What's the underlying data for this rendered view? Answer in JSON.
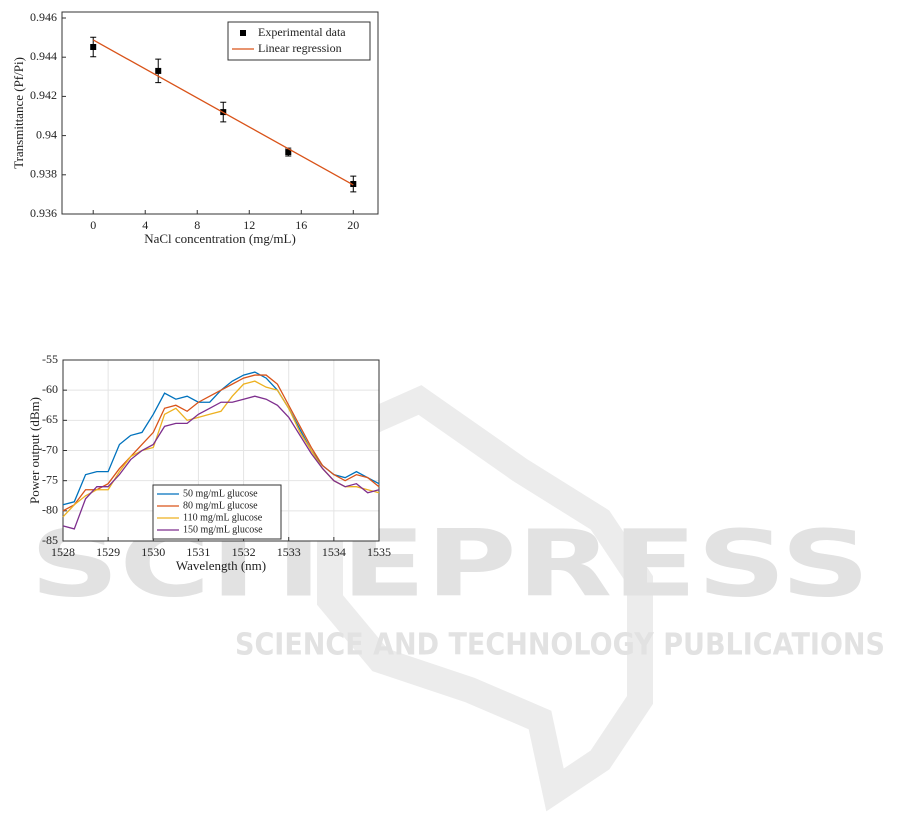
{
  "watermark": {
    "title": "SCITEPRESS",
    "subtitle": "SCIENCE AND TECHNOLOGY PUBLICATIONS"
  },
  "chart_data": [
    {
      "type": "scatter",
      "xlabel": "NaCl concentration (mg/mL)",
      "ylabel": "Transmittance (Pf/Pi)",
      "xlim": [
        -2.4,
        21.9
      ],
      "ylim": [
        0.936,
        0.946
      ],
      "xticks": [
        0,
        4,
        8,
        12,
        16,
        20
      ],
      "yticks": [
        0.936,
        0.938,
        0.94,
        0.942,
        0.944,
        0.946
      ],
      "grid": false,
      "legend": "upper right",
      "series": [
        {
          "name": "Experimental data",
          "type": "scatter",
          "color": "#000000",
          "x": [
            0,
            5,
            10,
            15,
            20
          ],
          "values": [
            0.94452,
            0.9433,
            0.9412,
            0.93916,
            0.93753
          ],
          "errors": [
            0.0005,
            0.0006,
            0.0005,
            0.0002,
            0.0004
          ]
        },
        {
          "name": "Linear regression",
          "type": "line",
          "color": "#d95319",
          "x": [
            0,
            20
          ],
          "values": [
            0.94488,
            0.93748
          ]
        }
      ]
    },
    {
      "type": "line",
      "xlabel": "Wavelength (nm)",
      "ylabel": "Power output (dBm)",
      "xlim": [
        1528,
        1535
      ],
      "ylim": [
        -85,
        -55
      ],
      "xticks": [
        1528,
        1529,
        1530,
        1531,
        1532,
        1533,
        1534,
        1535
      ],
      "yticks": [
        -85,
        -80,
        -75,
        -70,
        -65,
        -60,
        -55
      ],
      "grid": true,
      "legend": "lower left",
      "x": [
        1528,
        1528.25,
        1528.5,
        1528.75,
        1529,
        1529.25,
        1529.5,
        1529.75,
        1530,
        1530.25,
        1530.5,
        1530.75,
        1531,
        1531.25,
        1531.5,
        1531.75,
        1532,
        1532.25,
        1532.5,
        1532.75,
        1533,
        1533.25,
        1533.5,
        1533.75,
        1534,
        1534.25,
        1534.5,
        1534.75,
        1535
      ],
      "series": [
        {
          "name": "50 mg/mL glucose",
          "color": "#0072bd",
          "values": [
            -79,
            -78.5,
            -74,
            -73.5,
            -73.5,
            -69,
            -67.5,
            -67,
            -64,
            -60.5,
            -61.5,
            -61,
            -62,
            -62,
            -60,
            -58.5,
            -57.5,
            -57,
            -58,
            -60,
            -63,
            -66.5,
            -70,
            -72.5,
            -74,
            -74.5,
            -73.5,
            -74.5,
            -75.5
          ]
        },
        {
          "name": "80 mg/mL glucose",
          "color": "#d95319",
          "values": [
            -80,
            -79,
            -76.5,
            -76.5,
            -75.5,
            -73,
            -71,
            -69,
            -67,
            -63,
            -62.5,
            -63.5,
            -62,
            -61,
            -60,
            -59,
            -58,
            -57.5,
            -57.5,
            -59,
            -62.5,
            -66,
            -69.5,
            -72.5,
            -74,
            -75,
            -74,
            -74.5,
            -76
          ]
        },
        {
          "name": "110 mg/mL glucose",
          "color": "#edb120",
          "values": [
            -81,
            -79,
            -77.5,
            -76.5,
            -76.5,
            -73.5,
            -71,
            -70,
            -69.5,
            -64,
            -63,
            -65,
            -64.5,
            -64,
            -63.5,
            -61,
            -59,
            -58.5,
            -59.5,
            -60,
            -63,
            -67,
            -70,
            -73,
            -75,
            -76,
            -76,
            -76.5,
            -77
          ]
        },
        {
          "name": "150 mg/mL glucose",
          "color": "#7e2f8e",
          "values": [
            -82.5,
            -83,
            -78,
            -76,
            -76,
            -74,
            -71.5,
            -70,
            -69,
            -66,
            -65.5,
            -65.5,
            -64,
            -63,
            -62,
            -62,
            -61.5,
            -61,
            -61.5,
            -62.5,
            -64.5,
            -67.5,
            -70.5,
            -73,
            -75,
            -76,
            -75.5,
            -77,
            -76.5
          ]
        }
      ]
    }
  ]
}
